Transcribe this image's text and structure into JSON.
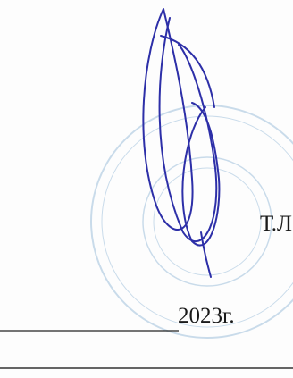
{
  "document": {
    "initials": "Т.Л",
    "date": "2023г."
  }
}
